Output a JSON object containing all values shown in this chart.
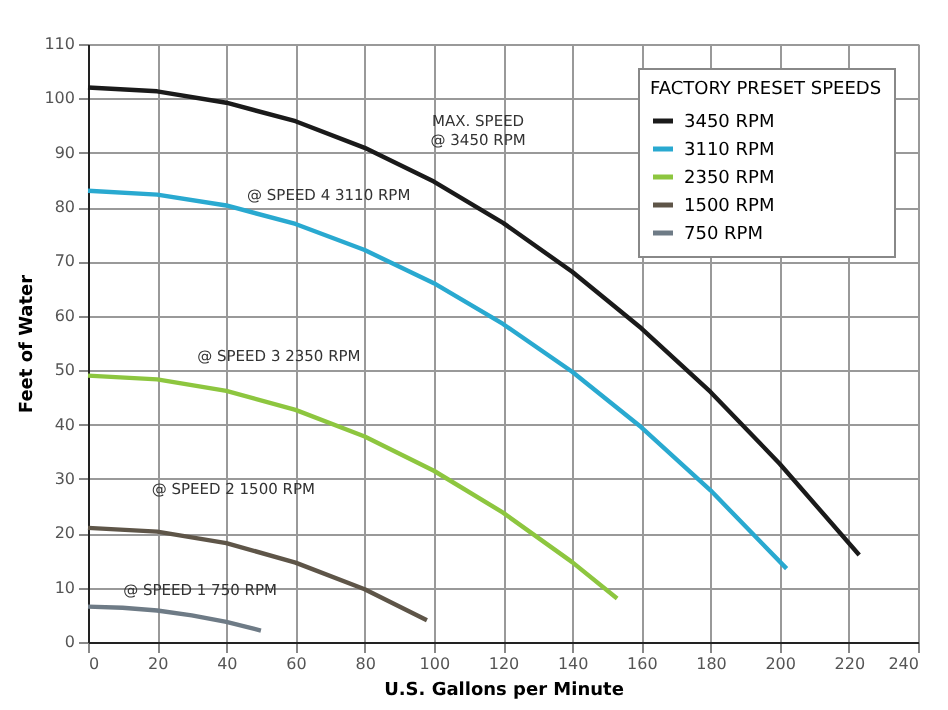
{
  "chart_data": {
    "type": "line",
    "xlabel": "U.S. Gallons per Minute",
    "ylabel": "Feet of Water",
    "legend_title": "FACTORY PRESET SPEEDS",
    "legend": "top right",
    "grid": true,
    "marker": "none",
    "line_style": "solid",
    "xlim": [
      0,
      240
    ],
    "xticks": [
      0,
      20,
      40,
      60,
      80,
      100,
      120,
      140,
      160,
      180,
      200,
      220,
      240
    ],
    "ylim": [
      0,
      110
    ],
    "yticks": [
      0,
      10,
      20,
      30,
      40,
      50,
      60,
      70,
      80,
      90,
      100,
      110
    ],
    "series": [
      {
        "name": "3450 RPM",
        "color": "#1a1a1a",
        "x": [
          0,
          20,
          40,
          60,
          80,
          100,
          120,
          140,
          160,
          180,
          200,
          223
        ],
        "values": [
          102,
          101.3,
          99.2,
          95.8,
          90.9,
          84.7,
          77.1,
          68.1,
          57.7,
          46,
          32.8,
          16
        ]
      },
      {
        "name": "3110 RPM",
        "color": "#29a9d0",
        "x": [
          0,
          20,
          40,
          60,
          80,
          100,
          120,
          140,
          160,
          180,
          202
        ],
        "values": [
          83,
          82.3,
          80.3,
          76.9,
          72.1,
          66,
          58.5,
          49.7,
          39.5,
          27.9,
          13.5
        ]
      },
      {
        "name": "2350 RPM",
        "color": "#8dc63f",
        "x": [
          0,
          20,
          40,
          60,
          80,
          100,
          120,
          140,
          153
        ],
        "values": [
          49,
          48.3,
          46.2,
          42.7,
          37.8,
          31.5,
          23.8,
          14.7,
          8
        ]
      },
      {
        "name": "1500 RPM",
        "color": "#5e5548",
        "x": [
          0,
          20,
          40,
          60,
          80,
          98
        ],
        "values": [
          21,
          20.3,
          18.2,
          14.6,
          9.7,
          4
        ]
      },
      {
        "name": "750 RPM",
        "color": "#6e7b86",
        "x": [
          0,
          10,
          20,
          30,
          40,
          50
        ],
        "values": [
          6.5,
          6.3,
          5.8,
          4.9,
          3.7,
          2.1
        ]
      }
    ],
    "annotations": [
      "MAX. SPEED\n@ 3450 RPM",
      "@ SPEED 4 3110 RPM",
      "@ SPEED 3 2350 RPM",
      "@ SPEED 2 1500 RPM",
      "@ SPEED 1 750 RPM"
    ]
  }
}
